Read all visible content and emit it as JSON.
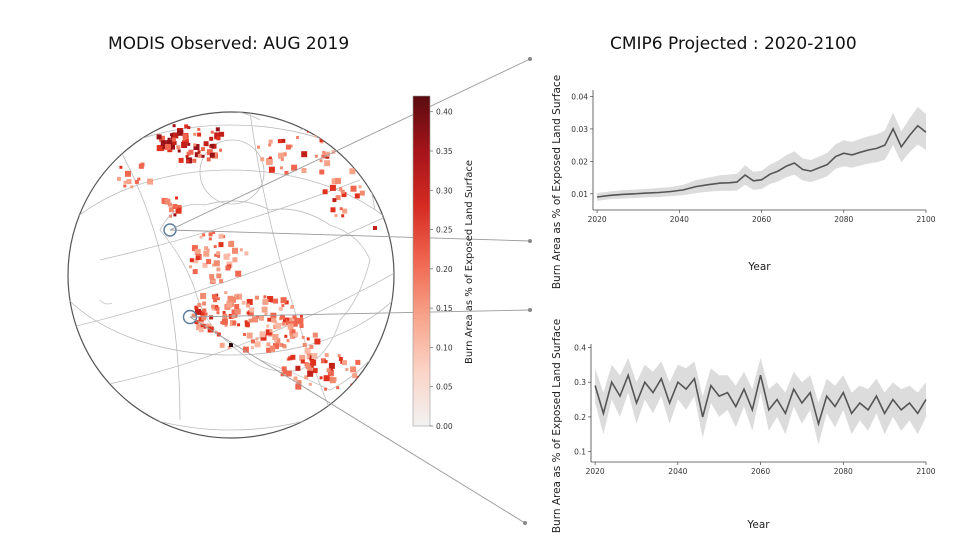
{
  "titles": {
    "left": "MODIS Observed: AUG 2019",
    "right": "CMIP6 Projected : 2020-2100"
  },
  "colorbar": {
    "label": "Burn Area as % of Exposed Land Surface",
    "ticks": [
      "0.00",
      "0.05",
      "0.10",
      "0.15",
      "0.20",
      "0.25",
      "0.30",
      "0.35",
      "0.40"
    ],
    "min": 0.0,
    "max": 0.42,
    "colors": [
      "#f2f2f2",
      "#fbd3c6",
      "#f7a38a",
      "#f0664f",
      "#d52b22",
      "#a5141a",
      "#5a0c10"
    ]
  },
  "colors": {
    "line": "#555555",
    "band": "#dcdcdc",
    "globe_outline": "#555555",
    "burn_accent": "#e0321f"
  },
  "chart_data": [
    {
      "type": "line",
      "region": "upper",
      "ylabel": "Burn Area as % of Exposed Land Surface",
      "xlabel": "Year",
      "xlim": [
        2019,
        2100
      ],
      "ylim": [
        0.005,
        0.042
      ],
      "xticks": [
        "2020",
        "2040",
        "2060",
        "2080",
        "2100"
      ],
      "yticks": [
        "0.01",
        "0.02",
        "0.03",
        "0.04"
      ],
      "series": [
        {
          "x": [
            2020,
            2023,
            2026,
            2029,
            2032,
            2035,
            2038,
            2041,
            2044,
            2047,
            2050,
            2052,
            2054,
            2056,
            2058,
            2060,
            2062,
            2064,
            2066,
            2068,
            2070,
            2072,
            2074,
            2076,
            2078,
            2080,
            2082,
            2084,
            2086,
            2088,
            2090,
            2092,
            2094,
            2096,
            2098,
            2100
          ],
          "values": [
            0.009,
            0.0095,
            0.0098,
            0.01,
            0.0102,
            0.0104,
            0.0107,
            0.0112,
            0.0122,
            0.0128,
            0.0133,
            0.0134,
            0.0136,
            0.0158,
            0.014,
            0.0143,
            0.016,
            0.017,
            0.0185,
            0.0195,
            0.0175,
            0.017,
            0.018,
            0.019,
            0.0215,
            0.0225,
            0.022,
            0.0228,
            0.0235,
            0.024,
            0.025,
            0.03,
            0.0245,
            0.028,
            0.031,
            0.029
          ],
          "band": [
            0.0012,
            0.0012,
            0.0013,
            0.0013,
            0.0013,
            0.0014,
            0.0014,
            0.0016,
            0.002,
            0.0022,
            0.0024,
            0.0025,
            0.0026,
            0.003,
            0.0028,
            0.0028,
            0.003,
            0.0032,
            0.0034,
            0.0036,
            0.0034,
            0.0034,
            0.0035,
            0.0036,
            0.0038,
            0.004,
            0.004,
            0.0041,
            0.0042,
            0.0043,
            0.0045,
            0.005,
            0.0048,
            0.0052,
            0.0058,
            0.0055
          ]
        }
      ]
    },
    {
      "type": "line",
      "region": "lower",
      "ylabel": "Burn Area as % of Exposed Land Surface",
      "xlabel": "Year",
      "xlim": [
        2019,
        2100
      ],
      "ylim": [
        0.07,
        0.41
      ],
      "xticks": [
        "2020",
        "2040",
        "2060",
        "2080",
        "2100"
      ],
      "yticks": [
        "0.1",
        "0.2",
        "0.3",
        "0.4"
      ],
      "series": [
        {
          "x": [
            2020,
            2022,
            2024,
            2026,
            2028,
            2030,
            2032,
            2034,
            2036,
            2038,
            2040,
            2042,
            2044,
            2046,
            2048,
            2050,
            2052,
            2054,
            2056,
            2058,
            2060,
            2062,
            2064,
            2066,
            2068,
            2070,
            2072,
            2074,
            2076,
            2078,
            2080,
            2082,
            2084,
            2086,
            2088,
            2090,
            2092,
            2094,
            2096,
            2098,
            2100
          ],
          "values": [
            0.29,
            0.21,
            0.3,
            0.26,
            0.32,
            0.24,
            0.3,
            0.27,
            0.31,
            0.24,
            0.3,
            0.28,
            0.31,
            0.2,
            0.29,
            0.26,
            0.27,
            0.23,
            0.28,
            0.22,
            0.32,
            0.22,
            0.25,
            0.21,
            0.28,
            0.24,
            0.27,
            0.18,
            0.26,
            0.23,
            0.27,
            0.21,
            0.24,
            0.22,
            0.26,
            0.21,
            0.25,
            0.22,
            0.24,
            0.21,
            0.25
          ],
          "band": [
            0.05,
            0.06,
            0.05,
            0.06,
            0.05,
            0.06,
            0.05,
            0.06,
            0.05,
            0.06,
            0.05,
            0.06,
            0.05,
            0.06,
            0.05,
            0.06,
            0.05,
            0.06,
            0.05,
            0.06,
            0.05,
            0.06,
            0.05,
            0.06,
            0.05,
            0.06,
            0.05,
            0.06,
            0.05,
            0.06,
            0.05,
            0.06,
            0.05,
            0.06,
            0.05,
            0.06,
            0.05,
            0.06,
            0.05,
            0.06,
            0.05
          ]
        }
      ]
    }
  ]
}
